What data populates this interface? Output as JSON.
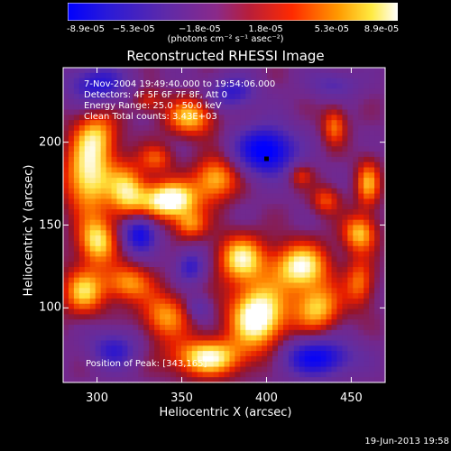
{
  "colorbar": {
    "ticks": [
      "-8.9e-05",
      "−5.3e-05",
      "−1.8e-05",
      "1.8e-05",
      "5.3e-05",
      "8.9e-05"
    ],
    "units": "(photons cm⁻² s⁻¹ asec⁻²)",
    "colors": [
      "#0000ff",
      "#5b2bb0",
      "#7a2fa0",
      "#b0204a",
      "#ff2a00",
      "#ff9a00",
      "#ffff66",
      "#ffffff"
    ]
  },
  "annotations": {
    "time": "7-Nov-2004 19:49:40.000 to 19:54:06.000",
    "detectors": "Detectors: 4F 5F 6F 7F 8F, Att 0",
    "energy": "Energy Range: 25.0 - 50.0 keV",
    "clean": "Clean    Total counts: 3.43E+03",
    "position": "Position of Peak: [343,165]"
  },
  "timestamp": "19-Jun-2013 19:58",
  "chart_data": {
    "type": "heatmap",
    "title": "Reconstructed RHESSI Image",
    "xlabel": "Heliocentric X (arcsec)",
    "ylabel": "Heliocentric Y (arcsec)",
    "xlim": [
      280,
      470
    ],
    "ylim": [
      55,
      245
    ],
    "x_ticks": [
      300,
      350,
      400,
      450
    ],
    "y_ticks": [
      100,
      150,
      200
    ],
    "x_tick_labels": [
      "300",
      "350",
      "400",
      "450"
    ],
    "y_tick_labels": [
      "100",
      "150",
      "200"
    ],
    "value_range": [
      -8.9e-05,
      8.9e-05
    ],
    "marker": {
      "x": 400,
      "y": 190
    },
    "peak": {
      "x": 343,
      "y": 165
    },
    "hot_regions": [
      {
        "x": 295,
        "y": 180,
        "sx": 10,
        "sy": 16,
        "a": 1.0
      },
      {
        "x": 318,
        "y": 170,
        "sx": 8,
        "sy": 12,
        "a": 0.8
      },
      {
        "x": 343,
        "y": 165,
        "sx": 12,
        "sy": 8,
        "a": 1.2
      },
      {
        "x": 370,
        "y": 178,
        "sx": 9,
        "sy": 9,
        "a": 0.8
      },
      {
        "x": 355,
        "y": 215,
        "sx": 10,
        "sy": 8,
        "a": 0.8
      },
      {
        "x": 300,
        "y": 205,
        "sx": 9,
        "sy": 10,
        "a": 0.6
      },
      {
        "x": 335,
        "y": 190,
        "sx": 7,
        "sy": 6,
        "a": 0.5
      },
      {
        "x": 300,
        "y": 140,
        "sx": 8,
        "sy": 10,
        "a": 0.9
      },
      {
        "x": 292,
        "y": 110,
        "sx": 9,
        "sy": 10,
        "a": 0.8
      },
      {
        "x": 318,
        "y": 115,
        "sx": 10,
        "sy": 8,
        "a": 0.7
      },
      {
        "x": 340,
        "y": 95,
        "sx": 10,
        "sy": 10,
        "a": 0.7
      },
      {
        "x": 365,
        "y": 70,
        "sx": 15,
        "sy": 8,
        "a": 1.0
      },
      {
        "x": 395,
        "y": 95,
        "sx": 12,
        "sy": 14,
        "a": 1.2
      },
      {
        "x": 385,
        "y": 130,
        "sx": 10,
        "sy": 10,
        "a": 0.9
      },
      {
        "x": 420,
        "y": 125,
        "sx": 12,
        "sy": 10,
        "a": 1.0
      },
      {
        "x": 430,
        "y": 100,
        "sx": 10,
        "sy": 10,
        "a": 0.8
      },
      {
        "x": 455,
        "y": 145,
        "sx": 7,
        "sy": 8,
        "a": 0.8
      },
      {
        "x": 455,
        "y": 115,
        "sx": 6,
        "sy": 10,
        "a": 0.6
      },
      {
        "x": 460,
        "y": 175,
        "sx": 5,
        "sy": 10,
        "a": 0.7
      },
      {
        "x": 435,
        "y": 165,
        "sx": 6,
        "sy": 6,
        "a": 0.5
      },
      {
        "x": 440,
        "y": 210,
        "sx": 5,
        "sy": 8,
        "a": 0.6
      },
      {
        "x": 420,
        "y": 180,
        "sx": 5,
        "sy": 5,
        "a": 0.4
      },
      {
        "x": 330,
        "y": 225,
        "sx": 6,
        "sy": 5,
        "a": 0.4
      },
      {
        "x": 355,
        "y": 150,
        "sx": 7,
        "sy": 6,
        "a": 0.6
      }
    ],
    "cold_regions": [
      {
        "x": 400,
        "y": 195,
        "sx": 12,
        "sy": 10,
        "a": 1.1
      },
      {
        "x": 325,
        "y": 145,
        "sx": 7,
        "sy": 8,
        "a": 0.9
      },
      {
        "x": 300,
        "y": 235,
        "sx": 12,
        "sy": 8,
        "a": 0.7
      },
      {
        "x": 355,
        "y": 125,
        "sx": 6,
        "sy": 7,
        "a": 0.6
      },
      {
        "x": 430,
        "y": 70,
        "sx": 15,
        "sy": 8,
        "a": 0.9
      },
      {
        "x": 310,
        "y": 75,
        "sx": 10,
        "sy": 8,
        "a": 0.6
      },
      {
        "x": 380,
        "y": 230,
        "sx": 10,
        "sy": 7,
        "a": 0.6
      },
      {
        "x": 440,
        "y": 235,
        "sx": 10,
        "sy": 6,
        "a": 0.4
      },
      {
        "x": 360,
        "y": 100,
        "sx": 5,
        "sy": 5,
        "a": 0.4
      }
    ]
  }
}
